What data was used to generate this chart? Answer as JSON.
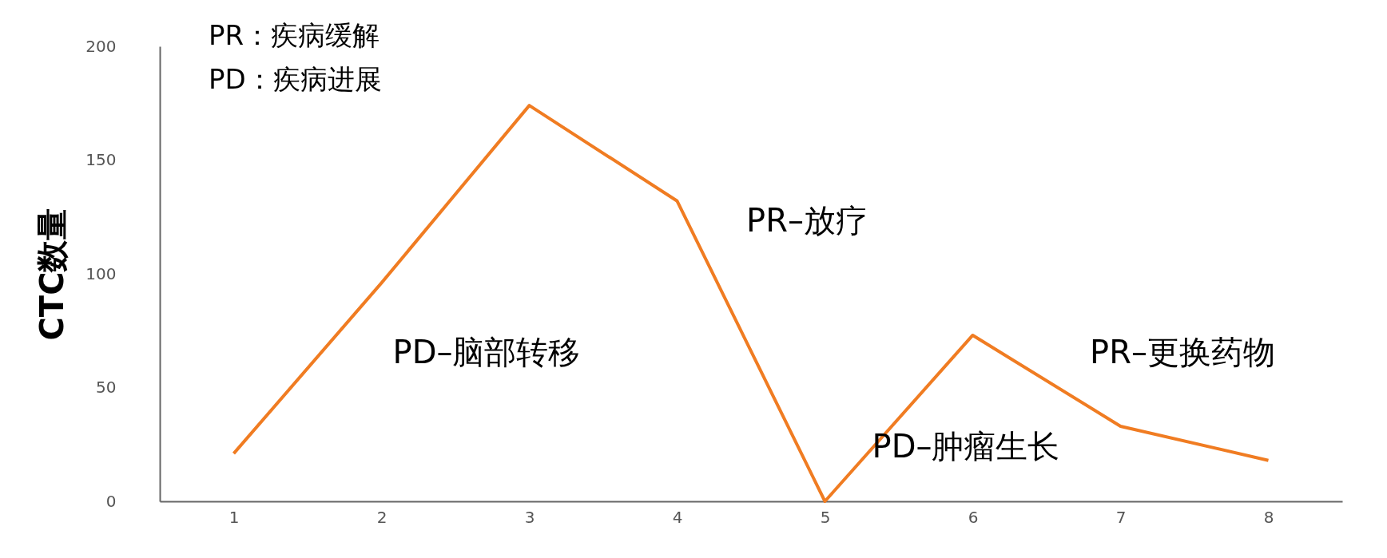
{
  "chart_data": {
    "type": "line",
    "ylabel": "CTC数量",
    "x": [
      1,
      2,
      3,
      4,
      5,
      6,
      7,
      8
    ],
    "values": [
      21,
      96,
      174,
      132,
      0,
      73,
      33,
      18
    ],
    "color": "#f07c22",
    "xlim": [
      0.5,
      8.5
    ],
    "xticks": [
      1,
      2,
      3,
      4,
      5,
      6,
      7,
      8
    ],
    "ylim": [
      0,
      200
    ],
    "yticks": [
      0,
      50,
      100,
      150,
      200
    ],
    "annotations": [
      "PR：疾病缓解",
      "PD：疾病进展",
      "PD–脑部转移",
      "PR–放疗",
      "PD–肿瘤生长",
      "PR–更换药物"
    ]
  }
}
